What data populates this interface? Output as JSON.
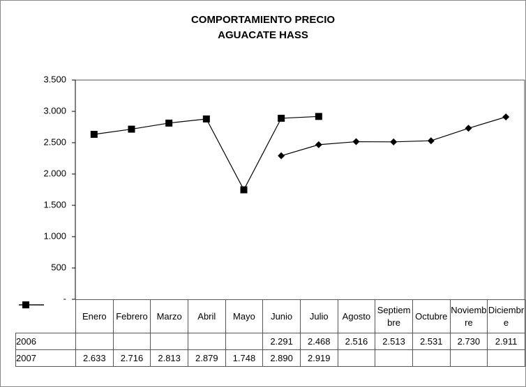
{
  "chart_data": {
    "type": "line",
    "title": "COMPORTAMIENTO PRECIO AGUACATE HASS",
    "categories": [
      "Enero",
      "Febrero",
      "Marzo",
      "Abril",
      "Mayo",
      "Junio",
      "Julio",
      "Agosto",
      "Septiembre",
      "Octubre",
      "Noviembre",
      "Diciembre"
    ],
    "series": [
      {
        "name": "2006",
        "color": "#000000",
        "marker": "diamond",
        "values": [
          null,
          null,
          null,
          null,
          null,
          2291,
          2468,
          2516,
          2513,
          2531,
          2730,
          2911
        ],
        "value_labels": [
          null,
          null,
          null,
          null,
          null,
          "2.291",
          "2.468",
          "2.516",
          "2.513",
          "2.531",
          "2.730",
          "2.911"
        ]
      },
      {
        "name": "2007",
        "color": "#000000",
        "marker": "square",
        "values": [
          2633,
          2716,
          2813,
          2879,
          1748,
          2890,
          2919,
          null,
          null,
          null,
          null,
          null
        ],
        "value_labels": [
          "2.633",
          "2.716",
          "2.813",
          "2.879",
          "1.748",
          "2.890",
          "2.919",
          null,
          null,
          null,
          null,
          null
        ]
      }
    ],
    "ylim": [
      0,
      3500
    ],
    "yticks": [
      {
        "value": 0,
        "label": "-"
      },
      500,
      {
        "value": 1000,
        "label": "1.000"
      },
      {
        "value": 1500,
        "label": "1.500"
      },
      {
        "value": 2000,
        "label": "2.000"
      },
      {
        "value": 2500,
        "label": "2.500"
      },
      {
        "value": 3000,
        "label": "3.000"
      },
      {
        "value": 3500,
        "label": "3.500"
      }
    ],
    "grid": false,
    "data_table": true
  }
}
